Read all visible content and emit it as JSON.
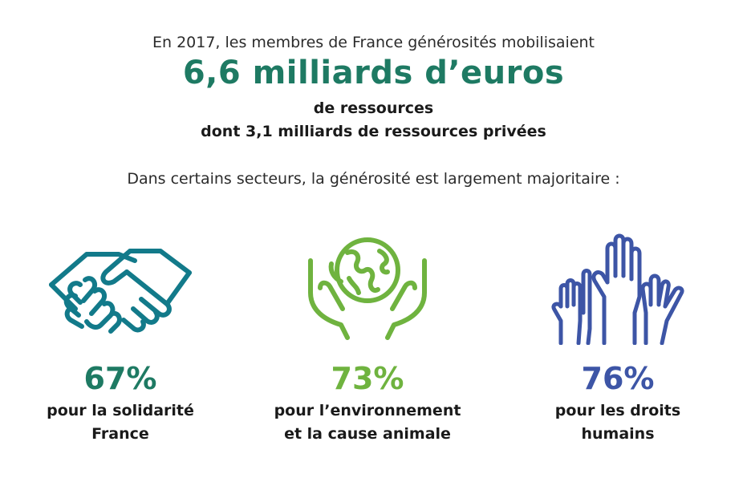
{
  "header": {
    "intro": "En 2017, les membres de France générosités mobilisaient",
    "big_figure": "6,6 milliards d’euros",
    "line1": "de ressources",
    "line2": "dont 3,1 milliards de ressources privées",
    "sectors_intro": "Dans certains secteurs, la générosité est largement majoritaire :"
  },
  "colors": {
    "figure": "#1e7a63",
    "solidarity": "#127a8a",
    "environment": "#6fb33f",
    "rights": "#3d55a6"
  },
  "sectors": [
    {
      "icon": "handshake-icon",
      "percent": "67%",
      "share": 0.67,
      "label_line1": "pour la solidarité",
      "label_line2": "France"
    },
    {
      "icon": "hands-holding-globe-icon",
      "percent": "73%",
      "share": 0.73,
      "label_line1": "pour l’environnement",
      "label_line2": "et la cause animale"
    },
    {
      "icon": "raised-hands-icon",
      "percent": "76%",
      "share": 0.76,
      "label_line1": "pour les droits",
      "label_line2": "humains"
    }
  ]
}
